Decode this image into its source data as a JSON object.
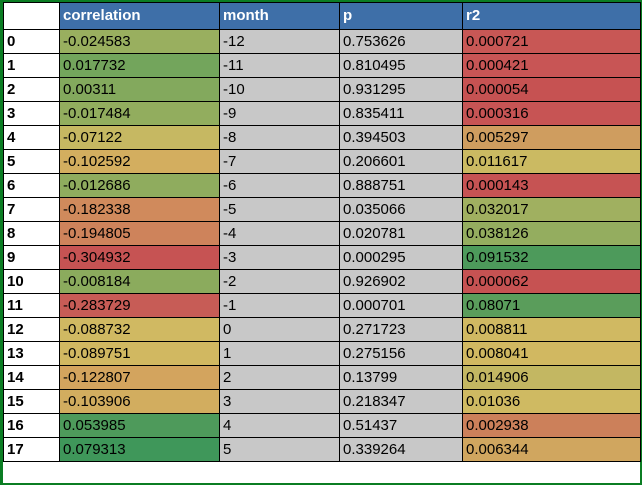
{
  "table": {
    "headers": [
      "",
      "correlation",
      "month",
      "p",
      "r2"
    ],
    "rows": [
      {
        "index": "0",
        "correlation": "-0.024583",
        "corr_color": "#99af5f",
        "month": "-12",
        "p": "0.753626",
        "r2": "0.000721",
        "r2_color": "#c85755"
      },
      {
        "index": "1",
        "correlation": "0.017732",
        "corr_color": "#73a55c",
        "month": "-11",
        "p": "0.810495",
        "r2": "0.000421",
        "r2_color": "#c85555"
      },
      {
        "index": "2",
        "correlation": "0.00311",
        "corr_color": "#83a95d",
        "month": "-10",
        "p": "0.931295",
        "r2": "0.000054",
        "r2_color": "#c65252"
      },
      {
        "index": "3",
        "correlation": "-0.017484",
        "corr_color": "#92ad5e",
        "month": "-9",
        "p": "0.835411",
        "r2": "0.000316",
        "r2_color": "#c75454"
      },
      {
        "index": "4",
        "correlation": "-0.07122",
        "corr_color": "#c6b862",
        "month": "-8",
        "p": "0.394503",
        "r2": "0.005297",
        "r2_color": "#cf9d5f"
      },
      {
        "index": "5",
        "correlation": "-0.102592",
        "corr_color": "#d3ae5f",
        "month": "-7",
        "p": "0.206601",
        "r2": "0.011617",
        "r2_color": "#cbba62"
      },
      {
        "index": "6",
        "correlation": "-0.012686",
        "corr_color": "#8fac5e",
        "month": "-6",
        "p": "0.888751",
        "r2": "0.000143",
        "r2_color": "#c65353"
      },
      {
        "index": "7",
        "correlation": "-0.182338",
        "corr_color": "#d08a5c",
        "month": "-5",
        "p": "0.035066",
        "r2": "0.032017",
        "r2_color": "#a0b060"
      },
      {
        "index": "8",
        "correlation": "-0.194805",
        "corr_color": "#ce835b",
        "month": "-4",
        "p": "0.020781",
        "r2": "0.038126",
        "r2_color": "#94ad5f"
      },
      {
        "index": "9",
        "correlation": "-0.304932",
        "corr_color": "#c65353",
        "month": "-3",
        "p": "0.000295",
        "r2": "0.091532",
        "r2_color": "#4d9a5b"
      },
      {
        "index": "10",
        "correlation": "-0.008184",
        "corr_color": "#8bab5d",
        "month": "-2",
        "p": "0.926902",
        "r2": "0.000062",
        "r2_color": "#c65252"
      },
      {
        "index": "11",
        "correlation": "-0.283729",
        "corr_color": "#c75c56",
        "month": "-1",
        "p": "0.000701",
        "r2": "0.08071",
        "r2_color": "#5a9d5b"
      },
      {
        "index": "12",
        "correlation": "-0.088732",
        "corr_color": "#d0b962",
        "month": "0",
        "p": "0.271723",
        "r2": "0.008811",
        "r2_color": "#d0b962"
      },
      {
        "index": "13",
        "correlation": "-0.089751",
        "corr_color": "#d1b861",
        "month": "1",
        "p": "0.275156",
        "r2": "0.008041",
        "r2_color": "#d1b861"
      },
      {
        "index": "14",
        "correlation": "-0.122807",
        "corr_color": "#d3a45e",
        "month": "2",
        "p": "0.13799",
        "r2": "0.014906",
        "r2_color": "#c3b762"
      },
      {
        "index": "15",
        "correlation": "-0.103906",
        "corr_color": "#d2ad5f",
        "month": "3",
        "p": "0.218347",
        "r2": "0.01036",
        "r2_color": "#cfba62"
      },
      {
        "index": "16",
        "correlation": "0.053985",
        "corr_color": "#4e9a5b",
        "month": "4",
        "p": "0.51437",
        "r2": "0.002938",
        "r2_color": "#cc805a"
      },
      {
        "index": "17",
        "correlation": "0.079313",
        "corr_color": "#3f975a",
        "month": "5",
        "p": "0.339264",
        "r2": "0.006344",
        "r2_color": "#d0a65f"
      }
    ]
  }
}
